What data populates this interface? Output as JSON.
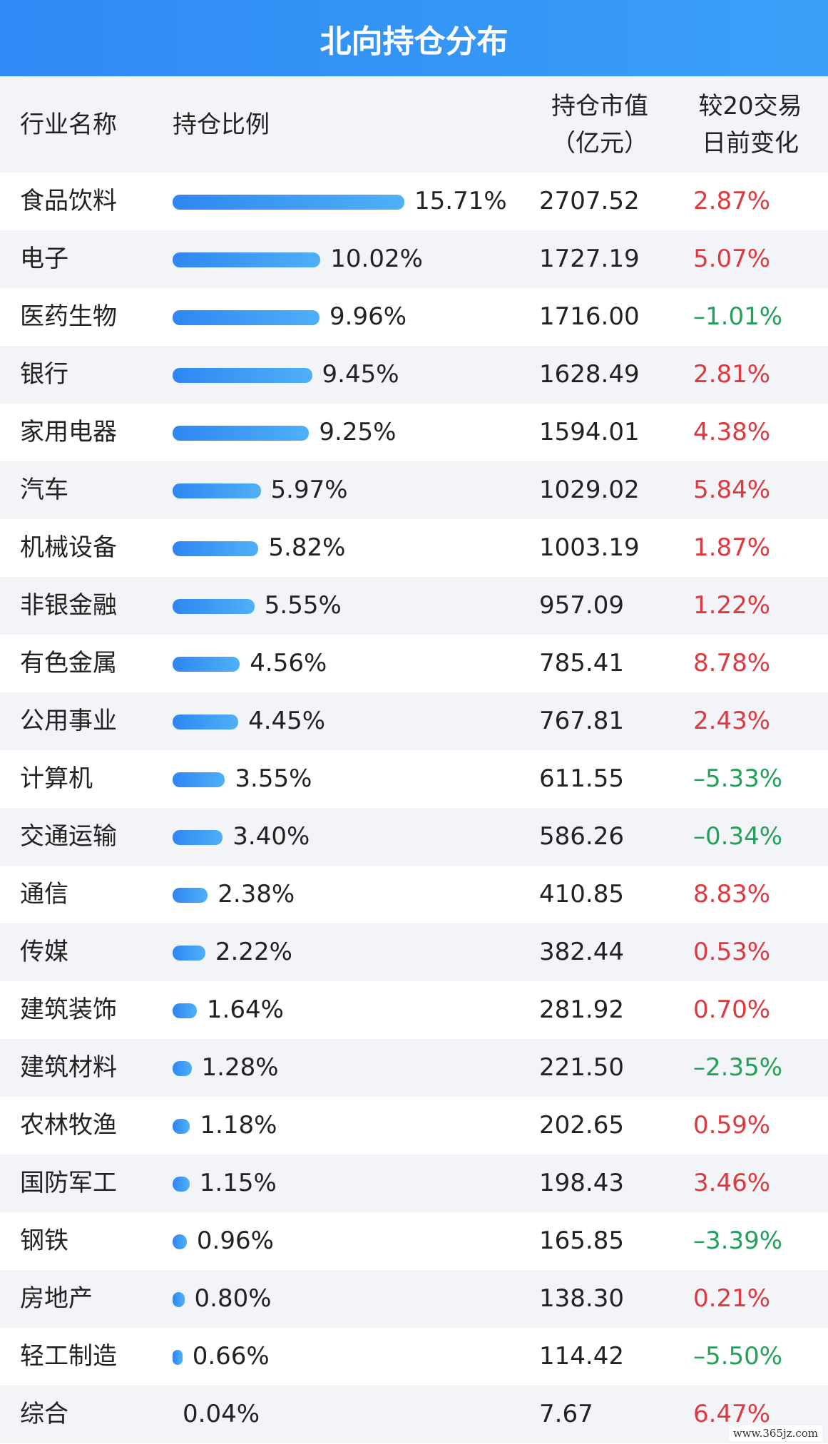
{
  "title": "北向持仓分布",
  "header": {
    "name": "行业名称",
    "ratio": "持仓比例",
    "value_line1": "持仓市值",
    "value_line2": "（亿元）",
    "change_line1": "较20交易",
    "change_line2": "日前变化"
  },
  "watermark": "www.365jz.com",
  "colors": {
    "title_bg": "#2f8af5",
    "bar": "#3d9af5",
    "positive": "#e0383e",
    "negative": "#23a05a",
    "stripe": "#f2f4f7"
  },
  "chart_data": {
    "type": "bar",
    "columns": [
      "行业名称",
      "持仓比例",
      "持仓市值（亿元）",
      "较20交易日前变化"
    ],
    "categories": [
      "食品饮料",
      "电子",
      "医药生物",
      "银行",
      "家用电器",
      "汽车",
      "机械设备",
      "非银金融",
      "有色金属",
      "公用事业",
      "计算机",
      "交通运输",
      "通信",
      "传媒",
      "建筑装饰",
      "建筑材料",
      "农林牧渔",
      "国防军工",
      "钢铁",
      "房地产",
      "轻工制造",
      "综合"
    ],
    "ratio_values": [
      15.71,
      10.02,
      9.96,
      9.45,
      9.25,
      5.97,
      5.82,
      5.55,
      4.56,
      4.45,
      3.55,
      3.4,
      2.38,
      2.22,
      1.64,
      1.28,
      1.18,
      1.15,
      0.96,
      0.8,
      0.66,
      0.04
    ],
    "ratio_labels": [
      "15.71%",
      "10.02%",
      "9.96%",
      "9.45%",
      "9.25%",
      "5.97%",
      "5.82%",
      "5.55%",
      "4.56%",
      "4.45%",
      "3.55%",
      "3.40%",
      "2.38%",
      "2.22%",
      "1.64%",
      "1.28%",
      "1.18%",
      "1.15%",
      "0.96%",
      "0.80%",
      "0.66%",
      "0.04%"
    ],
    "market_values": [
      "2707.52",
      "1727.19",
      "1716.00",
      "1628.49",
      "1594.01",
      "1029.02",
      "1003.19",
      "957.09",
      "785.41",
      "767.81",
      "611.55",
      "586.26",
      "410.85",
      "382.44",
      "281.92",
      "221.50",
      "202.65",
      "198.43",
      "165.85",
      "138.30",
      "114.42",
      "7.67"
    ],
    "changes": [
      "2.87%",
      "5.07%",
      "–1.01%",
      "2.81%",
      "4.38%",
      "5.84%",
      "1.87%",
      "1.22%",
      "8.78%",
      "2.43%",
      "–5.33%",
      "–0.34%",
      "8.83%",
      "0.53%",
      "0.70%",
      "–2.35%",
      "0.59%",
      "3.46%",
      "–3.39%",
      "0.21%",
      "–5.50%",
      "6.47%"
    ],
    "change_signs": [
      1,
      1,
      -1,
      1,
      1,
      1,
      1,
      1,
      1,
      1,
      -1,
      -1,
      1,
      1,
      1,
      -1,
      1,
      1,
      -1,
      1,
      -1,
      1
    ]
  }
}
